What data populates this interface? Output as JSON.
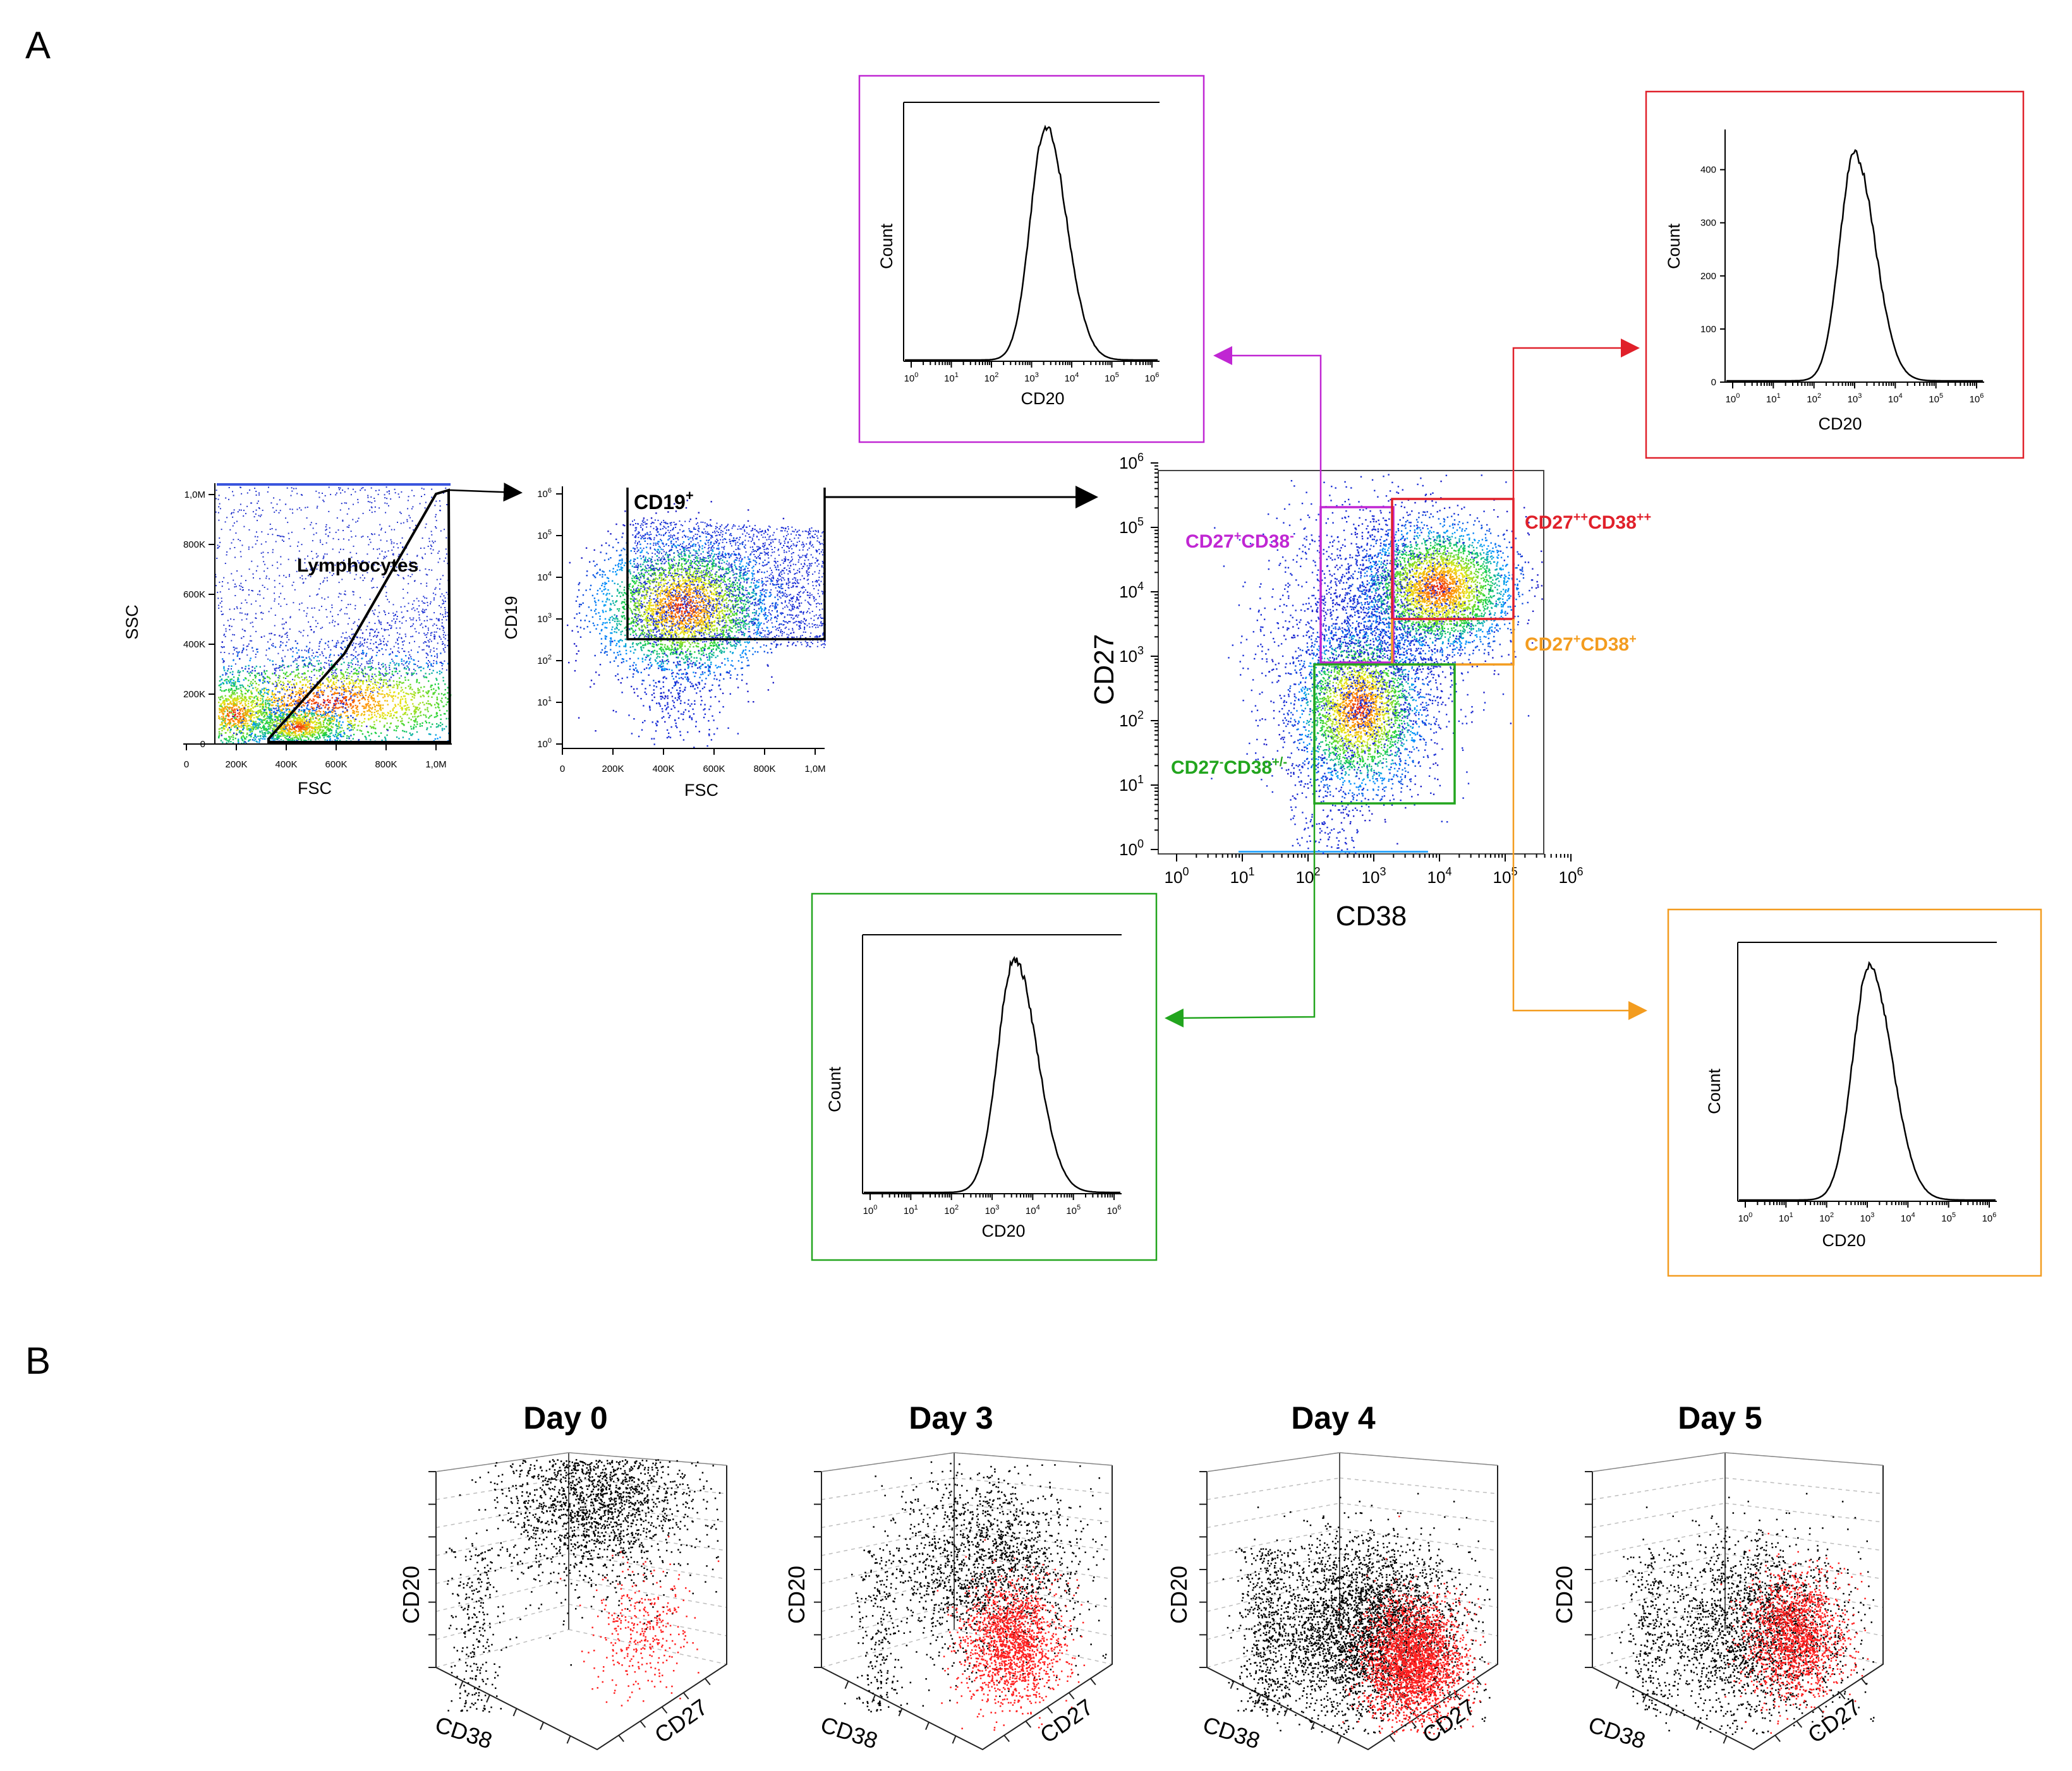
{
  "panel_labels": {
    "a": "A",
    "b": "B"
  },
  "colors": {
    "purple": "#c026d3",
    "red": "#e0202a",
    "orange": "#f39c1f",
    "green": "#22a51e",
    "black": "#000000"
  },
  "lymph_plot": {
    "xlabel": "FSC",
    "ylabel": "SSC",
    "gate_label": "Lymphocytes",
    "x_ticks": [
      "0",
      "200K",
      "400K",
      "600K",
      "800K",
      "1,0M"
    ],
    "y_ticks": [
      "0",
      "200K",
      "400K",
      "600K",
      "800K",
      "1,0M"
    ]
  },
  "cd19_plot": {
    "xlabel": "FSC",
    "ylabel": "CD19",
    "gate_label_main": "CD19",
    "gate_label_sup": "+",
    "x_ticks": [
      "0",
      "200K",
      "400K",
      "600K",
      "800K",
      "1,0M"
    ],
    "y_exponents": [
      "0",
      "1",
      "2",
      "3",
      "4",
      "5",
      "6"
    ]
  },
  "main_plot": {
    "xlabel": "CD38",
    "ylabel": "CD27",
    "exponents": [
      "0",
      "1",
      "2",
      "3",
      "4",
      "5",
      "6"
    ],
    "gates": {
      "purple": {
        "base1": "CD27",
        "sup1": "+",
        "base2": "CD38",
        "sup2": "-"
      },
      "red": {
        "base1": "CD27",
        "sup1": "++",
        "base2": "CD38",
        "sup2": "++"
      },
      "orange": {
        "base1": "CD27",
        "sup1": "+",
        "base2": "CD38",
        "sup2": "+"
      },
      "green": {
        "base1": "CD27",
        "sup1": "-",
        "base2": "CD38",
        "sup2": "+/-"
      }
    }
  },
  "histograms": {
    "purple": {
      "xlabel": "CD20",
      "ylabel": "Count"
    },
    "red": {
      "xlabel": "CD20",
      "ylabel": "Count",
      "y_ticks": [
        "0",
        "100",
        "200",
        "300",
        "400"
      ]
    },
    "green": {
      "xlabel": "CD20",
      "ylabel": "Count"
    },
    "orange": {
      "xlabel": "CD20",
      "ylabel": "Count"
    },
    "exponents": [
      "0",
      "1",
      "2",
      "3",
      "4",
      "5",
      "6"
    ]
  },
  "days": {
    "axis_x": "CD38",
    "axis_y": "CD20",
    "axis_z": "CD27",
    "titles": [
      "Day 0",
      "Day 3",
      "Day 4",
      "Day 5"
    ]
  }
}
